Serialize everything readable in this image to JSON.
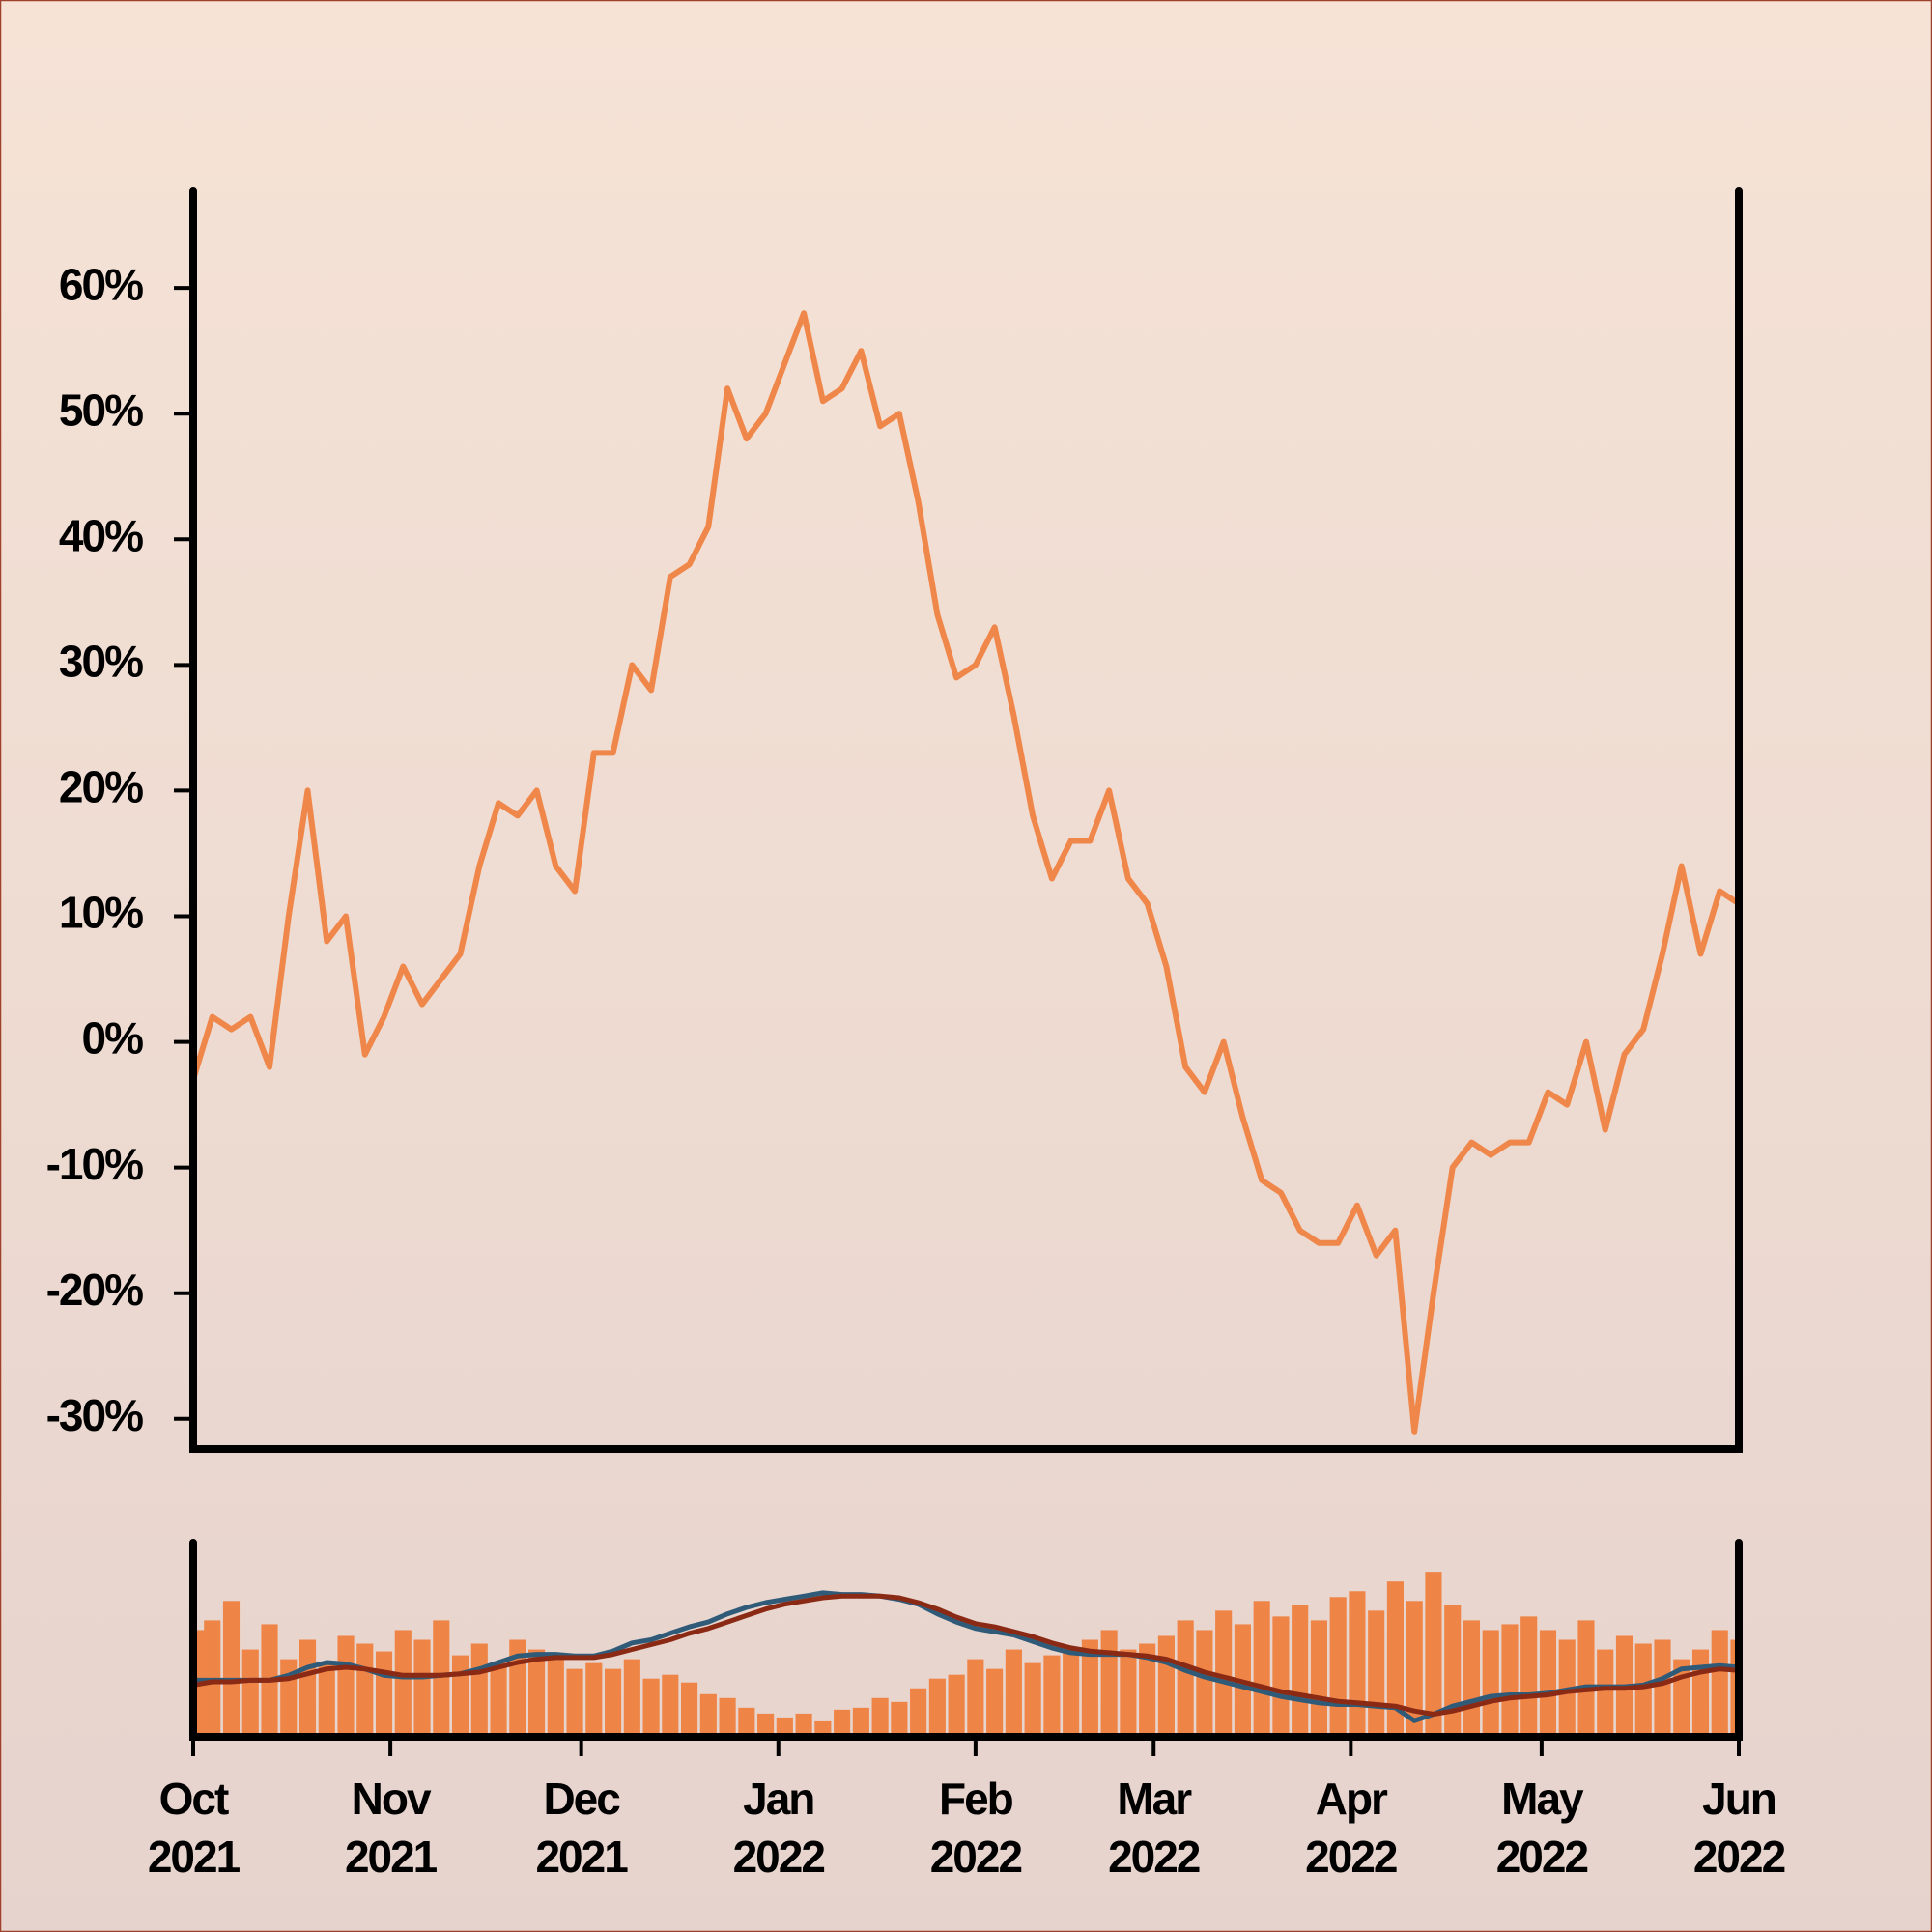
{
  "chart_data": [
    {
      "type": "line",
      "x": [
        0,
        3,
        6,
        9,
        12,
        15,
        18,
        21,
        24,
        27,
        30,
        33,
        36,
        39,
        42,
        45,
        48,
        51,
        54,
        57,
        60,
        63,
        66,
        69,
        72,
        75,
        78,
        81,
        84,
        87,
        90,
        93,
        96,
        99,
        102,
        105,
        108,
        111,
        114,
        117,
        120,
        123,
        126,
        129,
        132,
        135,
        138,
        141,
        144,
        147,
        150,
        153,
        156,
        159,
        162,
        165,
        168,
        171,
        174,
        177,
        180,
        183,
        186,
        189,
        192,
        195,
        198,
        201,
        204,
        207,
        210,
        213,
        216,
        219,
        222,
        225,
        228,
        231,
        234,
        237,
        240,
        243
      ],
      "series": [
        {
          "color": "#f0874a",
          "values": [
            -3,
            2,
            1,
            2,
            -2,
            10,
            20,
            8,
            10,
            -1,
            2,
            6,
            3,
            5,
            7,
            14,
            19,
            18,
            20,
            14,
            12,
            23,
            23,
            30,
            28,
            37,
            38,
            41,
            52,
            48,
            50,
            54,
            58,
            51,
            52,
            55,
            49,
            50,
            43,
            34,
            29,
            30,
            33,
            26,
            18,
            13,
            16,
            16,
            20,
            13,
            11,
            6,
            -2,
            -4,
            0,
            -6,
            -11,
            -12,
            -15,
            -16,
            -16,
            -13,
            -17,
            -15,
            -31,
            -20,
            -10,
            -8,
            -9,
            -8,
            -8,
            -4,
            -5,
            0,
            -7,
            -1,
            1,
            7,
            14,
            7,
            12,
            11
          ]
        }
      ],
      "xlim": [
        0,
        243
      ],
      "ylim": [
        -32.4,
        67.7
      ],
      "yticks": [
        {
          "value": -30,
          "label": "-30%"
        },
        {
          "value": -20,
          "label": "-20%"
        },
        {
          "value": -10,
          "label": "-10%"
        },
        {
          "value": 0,
          "label": "0%"
        },
        {
          "value": 10,
          "label": "10%"
        },
        {
          "value": 20,
          "label": "20%"
        },
        {
          "value": 30,
          "label": "30%"
        },
        {
          "value": 40,
          "label": "40%"
        },
        {
          "value": 50,
          "label": "50%"
        },
        {
          "value": 60,
          "label": "60%"
        }
      ]
    },
    {
      "type": "bar",
      "x": [
        0,
        3,
        6,
        9,
        12,
        15,
        18,
        21,
        24,
        27,
        30,
        33,
        36,
        39,
        42,
        45,
        48,
        51,
        54,
        57,
        60,
        63,
        66,
        69,
        72,
        75,
        78,
        81,
        84,
        87,
        90,
        93,
        96,
        99,
        102,
        105,
        108,
        111,
        114,
        117,
        120,
        123,
        126,
        129,
        132,
        135,
        138,
        141,
        144,
        147,
        150,
        153,
        156,
        159,
        162,
        165,
        168,
        171,
        174,
        177,
        180,
        183,
        186,
        189,
        192,
        195,
        198,
        201,
        204,
        207,
        210,
        213,
        216,
        219,
        222,
        225,
        228,
        231,
        234,
        237,
        240,
        243
      ],
      "values": [
        55,
        60,
        70,
        45,
        58,
        40,
        50,
        38,
        52,
        48,
        44,
        55,
        50,
        60,
        42,
        48,
        38,
        50,
        45,
        40,
        35,
        38,
        35,
        40,
        30,
        32,
        28,
        22,
        20,
        15,
        12,
        10,
        12,
        8,
        14,
        15,
        20,
        18,
        25,
        30,
        32,
        40,
        35,
        45,
        38,
        42,
        45,
        50,
        55,
        45,
        48,
        52,
        60,
        55,
        65,
        58,
        70,
        62,
        68,
        60,
        72,
        75,
        65,
        80,
        70,
        85,
        68,
        60,
        55,
        58,
        62,
        55,
        50,
        60,
        45,
        52,
        48,
        50,
        40,
        45,
        55,
        50
      ],
      "color": "#ef8447",
      "ylim": [
        0,
        100
      ],
      "series": [
        {
          "color": "#2f5a78",
          "axis": "y2",
          "values": [
            1,
            1,
            1,
            1,
            1,
            4,
            9,
            12,
            11,
            8,
            4,
            3,
            3,
            4,
            5,
            8,
            12,
            16,
            17,
            17,
            16,
            16,
            19,
            24,
            26,
            30,
            34,
            37,
            42,
            46,
            49,
            51,
            53,
            55,
            54,
            54,
            53,
            51,
            48,
            42,
            37,
            33,
            31,
            29,
            25,
            21,
            18,
            17,
            17,
            17,
            15,
            12,
            7,
            3,
            0,
            -3,
            -6,
            -9,
            -11,
            -13,
            -14,
            -14,
            -15,
            -16,
            -24,
            -20,
            -15,
            -12,
            -9,
            -8,
            -8,
            -7,
            -5,
            -3,
            -3,
            -3,
            -2,
            2,
            8,
            9,
            10,
            9
          ]
        },
        {
          "color": "#8b2a14",
          "axis": "y2",
          "values": [
            -2,
            0,
            0,
            1,
            1,
            2,
            5,
            8,
            9,
            8,
            6,
            4,
            4,
            4,
            5,
            6,
            9,
            12,
            14,
            15,
            15,
            15,
            17,
            20,
            23,
            26,
            30,
            33,
            37,
            41,
            45,
            48,
            50,
            52,
            53,
            53,
            53,
            52,
            49,
            45,
            40,
            36,
            34,
            31,
            28,
            24,
            21,
            19,
            18,
            17,
            16,
            14,
            10,
            6,
            3,
            0,
            -3,
            -6,
            -8,
            -10,
            -12,
            -13,
            -14,
            -15,
            -18,
            -20,
            -18,
            -15,
            -12,
            -10,
            -9,
            -8,
            -6,
            -5,
            -4,
            -4,
            -3,
            -1,
            3,
            6,
            8,
            7
          ]
        }
      ],
      "y2lim": [
        -34,
        86
      ],
      "xlim": [
        0,
        243
      ],
      "xticks": [
        {
          "value": 0,
          "label": [
            "Oct",
            "2021"
          ]
        },
        {
          "value": 31,
          "label": [
            "Nov",
            "2021"
          ]
        },
        {
          "value": 61,
          "label": [
            "Dec",
            "2021"
          ]
        },
        {
          "value": 92,
          "label": [
            "Jan",
            "2022"
          ]
        },
        {
          "value": 123,
          "label": [
            "Feb",
            "2022"
          ]
        },
        {
          "value": 151,
          "label": [
            "Mar",
            "2022"
          ]
        },
        {
          "value": 182,
          "label": [
            "Apr",
            "2022"
          ]
        },
        {
          "value": 212,
          "label": [
            "May",
            "2022"
          ]
        },
        {
          "value": 243,
          "label": [
            "Jun",
            "2022"
          ]
        }
      ]
    }
  ]
}
